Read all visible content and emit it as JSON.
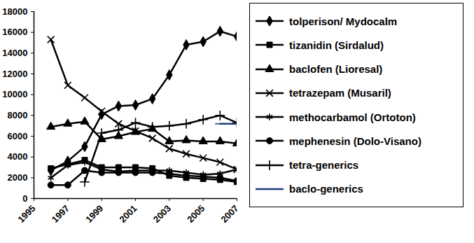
{
  "chart_data": {
    "type": "line",
    "x": [
      1996,
      1997,
      1998,
      1999,
      2000,
      2001,
      2002,
      2003,
      2004,
      2005,
      2006,
      2007
    ],
    "xlim": [
      1995,
      2007
    ],
    "xticks": [
      1995,
      1997,
      1999,
      2001,
      2003,
      2005,
      2007
    ],
    "ylim": [
      0,
      18000
    ],
    "yticks": [
      0,
      2000,
      4000,
      6000,
      8000,
      10000,
      12000,
      14000,
      16000,
      18000
    ],
    "grid": false,
    "legend": "right",
    "series": [
      {
        "name": "tolperison/ Mydocalm",
        "color": "#000000",
        "marker": "diamond",
        "line_style": "solid",
        "values": [
          2700,
          3600,
          5000,
          8100,
          8900,
          9000,
          9600,
          11900,
          14800,
          15100,
          16100,
          15600
        ]
      },
      {
        "name": "tizanidin (Sirdalud)",
        "color": "#000000",
        "marker": "square",
        "line_style": "solid",
        "values": [
          2900,
          3300,
          3700,
          3000,
          3000,
          3000,
          2900,
          2200,
          2000,
          1900,
          1800,
          1600
        ]
      },
      {
        "name": "baclofen (Lioresal)",
        "color": "#000000",
        "marker": "triangle",
        "line_style": "solid",
        "values": [
          6900,
          7200,
          7400,
          5700,
          6000,
          6400,
          6700,
          5500,
          5600,
          5500,
          5500,
          5300
        ]
      },
      {
        "name": "tetrazepam (Musaril)",
        "color": "#000000",
        "marker": "times",
        "line_style": "solid",
        "values": [
          15300,
          10900,
          9700,
          8400,
          7200,
          6500,
          5800,
          4800,
          4300,
          3900,
          3500,
          2800
        ]
      },
      {
        "name": "methocarbamol (Ortoton)",
        "color": "#000000",
        "marker": "asterisk",
        "line_style": "solid",
        "values": [
          2000,
          3200,
          3500,
          2800,
          2600,
          2700,
          2700,
          2700,
          2500,
          2300,
          2400,
          2800
        ]
      },
      {
        "name": "mephenesin (Dolo-Visano)",
        "color": "#000000",
        "marker": "circle",
        "line_style": "solid",
        "values": [
          1300,
          1300,
          2700,
          2500,
          2500,
          2500,
          2500,
          2400,
          2200,
          2100,
          2000,
          1700
        ]
      },
      {
        "name": "tetra-generics",
        "color": "#000000",
        "marker": "plus",
        "line_style": "solid",
        "values": [
          null,
          null,
          1600,
          6300,
          6600,
          7300,
          6900,
          7000,
          7200,
          7600,
          8000,
          7300
        ]
      },
      {
        "name": "baclo-generics",
        "color": "#1f3d7a",
        "marker": "dash",
        "line_style": "solid",
        "values": [
          null,
          null,
          null,
          null,
          null,
          null,
          null,
          null,
          null,
          null,
          7200,
          7200
        ]
      }
    ]
  }
}
